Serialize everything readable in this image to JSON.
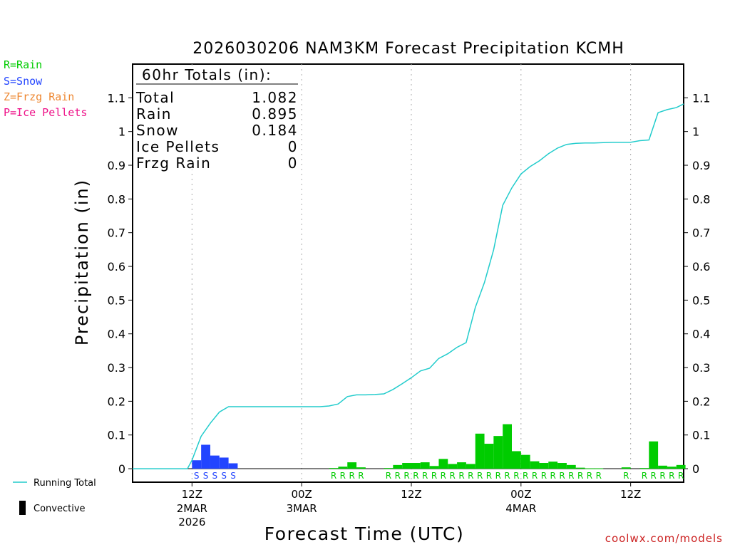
{
  "colors": {
    "rain": "#00cc00",
    "snow": "#2244ff",
    "frzg_rain": "#ee8833",
    "ice_pellets": "#ee1188",
    "running_total": "#22cccc",
    "convective": "#000000",
    "credit": "#cc2222"
  },
  "legend_left": {
    "rain": "R=Rain",
    "snow": "S=Snow",
    "frzg_rain": "Z=Frzg Rain",
    "ice_pellets": "P=Ice Pellets"
  },
  "legend_bottom": {
    "running_total": "Running Total",
    "convective": "Convective"
  },
  "totals_box": {
    "header": "60hr Totals (in):",
    "rows": [
      {
        "label": "Total",
        "value": "1.082"
      },
      {
        "label": "Rain",
        "value": "0.895"
      },
      {
        "label": "Snow",
        "value": "0.184"
      },
      {
        "label": "Ice Pellets",
        "value": "0"
      },
      {
        "label": "Frzg Rain",
        "value": "0"
      }
    ]
  },
  "credit": "coolwx.com/models",
  "chart_data": {
    "type": "bar",
    "title": "2026030206 NAM3KM Forecast Precipitation KCMH",
    "xlabel": "Forecast Time (UTC)",
    "ylabel": "Precipitation (in)",
    "ylim": [
      -0.04,
      1.2
    ],
    "xlim_hours_from_init": [
      -0.5,
      59.8
    ],
    "y_ticks": [
      0,
      0.1,
      0.2,
      0.3,
      0.4,
      0.5,
      0.6,
      0.7,
      0.8,
      0.9,
      1,
      1.1
    ],
    "y_tick_labels": [
      "0",
      "0.1",
      "0.2",
      "0.3",
      "0.4",
      "0.5",
      "0.6",
      "0.7",
      "0.8",
      "0.9",
      "1",
      "1.1"
    ],
    "x_ticks": [
      {
        "hour": 6,
        "label": "12Z",
        "sub1": "2MAR",
        "sub2": "2026"
      },
      {
        "hour": 18,
        "label": "00Z",
        "sub1": "3MAR",
        "sub2": ""
      },
      {
        "hour": 30,
        "label": "12Z",
        "sub1": "",
        "sub2": ""
      },
      {
        "hour": 42,
        "label": "00Z",
        "sub1": "4MAR",
        "sub2": ""
      },
      {
        "hour": 54,
        "label": "12Z",
        "sub1": "",
        "sub2": ""
      }
    ],
    "series": [
      {
        "name": "Snow",
        "type": "S",
        "x": [
          6,
          7,
          8,
          9,
          10
        ],
        "values": [
          0.025,
          0.071,
          0.039,
          0.033,
          0.016
        ]
      },
      {
        "name": "Rain",
        "type": "R",
        "x": [
          21,
          22,
          23,
          24,
          27,
          28,
          29,
          30,
          31,
          32,
          33,
          34,
          35,
          36,
          37,
          38,
          39,
          40,
          41,
          42,
          43,
          44,
          45,
          46,
          47,
          48,
          49,
          50,
          53,
          55,
          56,
          57,
          58,
          59
        ],
        "values": [
          0.002,
          0.006,
          0.019,
          0.004,
          0.002,
          0.011,
          0.017,
          0.017,
          0.019,
          0.008,
          0.029,
          0.014,
          0.019,
          0.014,
          0.104,
          0.074,
          0.097,
          0.132,
          0.052,
          0.041,
          0.022,
          0.017,
          0.021,
          0.017,
          0.011,
          0.003,
          0.001,
          0.001,
          0.004,
          0.002,
          0.081,
          0.009,
          0.006,
          0.011
        ]
      },
      {
        "name": "Running Total",
        "x": [
          -0.5,
          4,
          5.5,
          6,
          7,
          8,
          9,
          10,
          15,
          19,
          20,
          21,
          22,
          23,
          24,
          25,
          26,
          27,
          28,
          29,
          30,
          31,
          32,
          33,
          34,
          35,
          36,
          37,
          38,
          39,
          40,
          41,
          42,
          43,
          44,
          45,
          46,
          47,
          48,
          49,
          50,
          51,
          52,
          53,
          54,
          55,
          56,
          57,
          58,
          59,
          59.8
        ],
        "values": [
          0,
          0,
          0,
          0.025,
          0.096,
          0.135,
          0.168,
          0.184,
          0.184,
          0.184,
          0.184,
          0.186,
          0.192,
          0.214,
          0.219,
          0.219,
          0.22,
          0.222,
          0.235,
          0.252,
          0.27,
          0.29,
          0.298,
          0.327,
          0.341,
          0.36,
          0.374,
          0.478,
          0.552,
          0.649,
          0.781,
          0.833,
          0.874,
          0.896,
          0.913,
          0.934,
          0.951,
          0.962,
          0.965,
          0.966,
          0.966,
          0.967,
          0.968,
          0.968,
          0.968,
          0.973,
          0.975,
          1.056,
          1.065,
          1.071,
          1.082
        ]
      }
    ]
  }
}
